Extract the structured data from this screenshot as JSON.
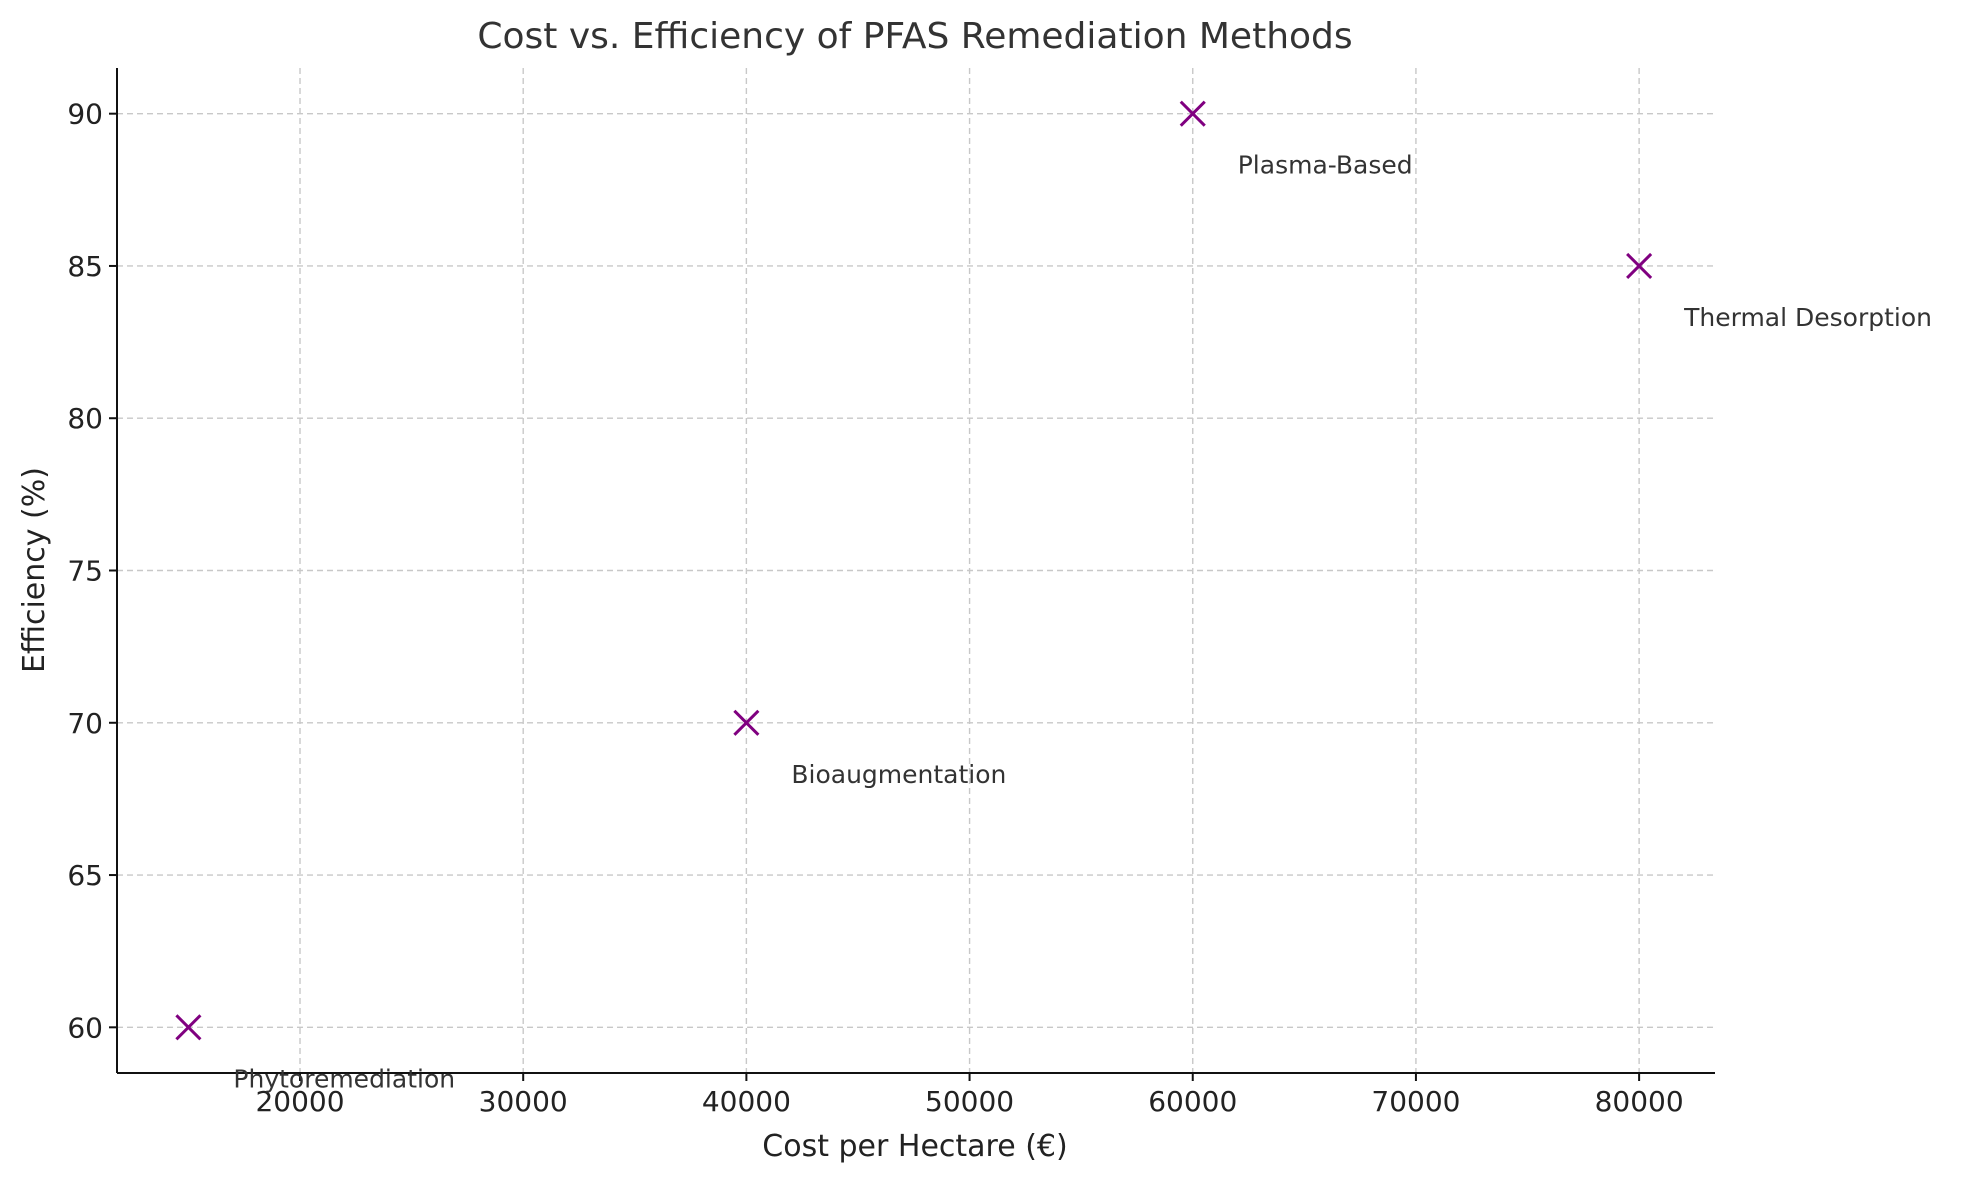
{
  "chart_data": {
    "type": "scatter",
    "title": "Cost vs. Efficiency of PFAS Remediation Methods",
    "xlabel": "Cost per Hectare (€)",
    "ylabel": "Efficiency (%)",
    "xlim": [
      11800,
      83400
    ],
    "ylim": [
      58.5,
      91.5
    ],
    "xticks": [
      20000,
      30000,
      40000,
      50000,
      60000,
      70000,
      80000
    ],
    "yticks": [
      60,
      65,
      70,
      75,
      80,
      85,
      90
    ],
    "grid": true,
    "marker": "x",
    "marker_color": "#800080",
    "points": [
      {
        "label": "Phytoremediation",
        "x": 15000,
        "y": 60
      },
      {
        "label": "Bioaugmentation",
        "x": 40000,
        "y": 70
      },
      {
        "label": "Plasma-Based",
        "x": 60000,
        "y": 90
      },
      {
        "label": "Thermal Desorption",
        "x": 80000,
        "y": 85
      }
    ]
  }
}
